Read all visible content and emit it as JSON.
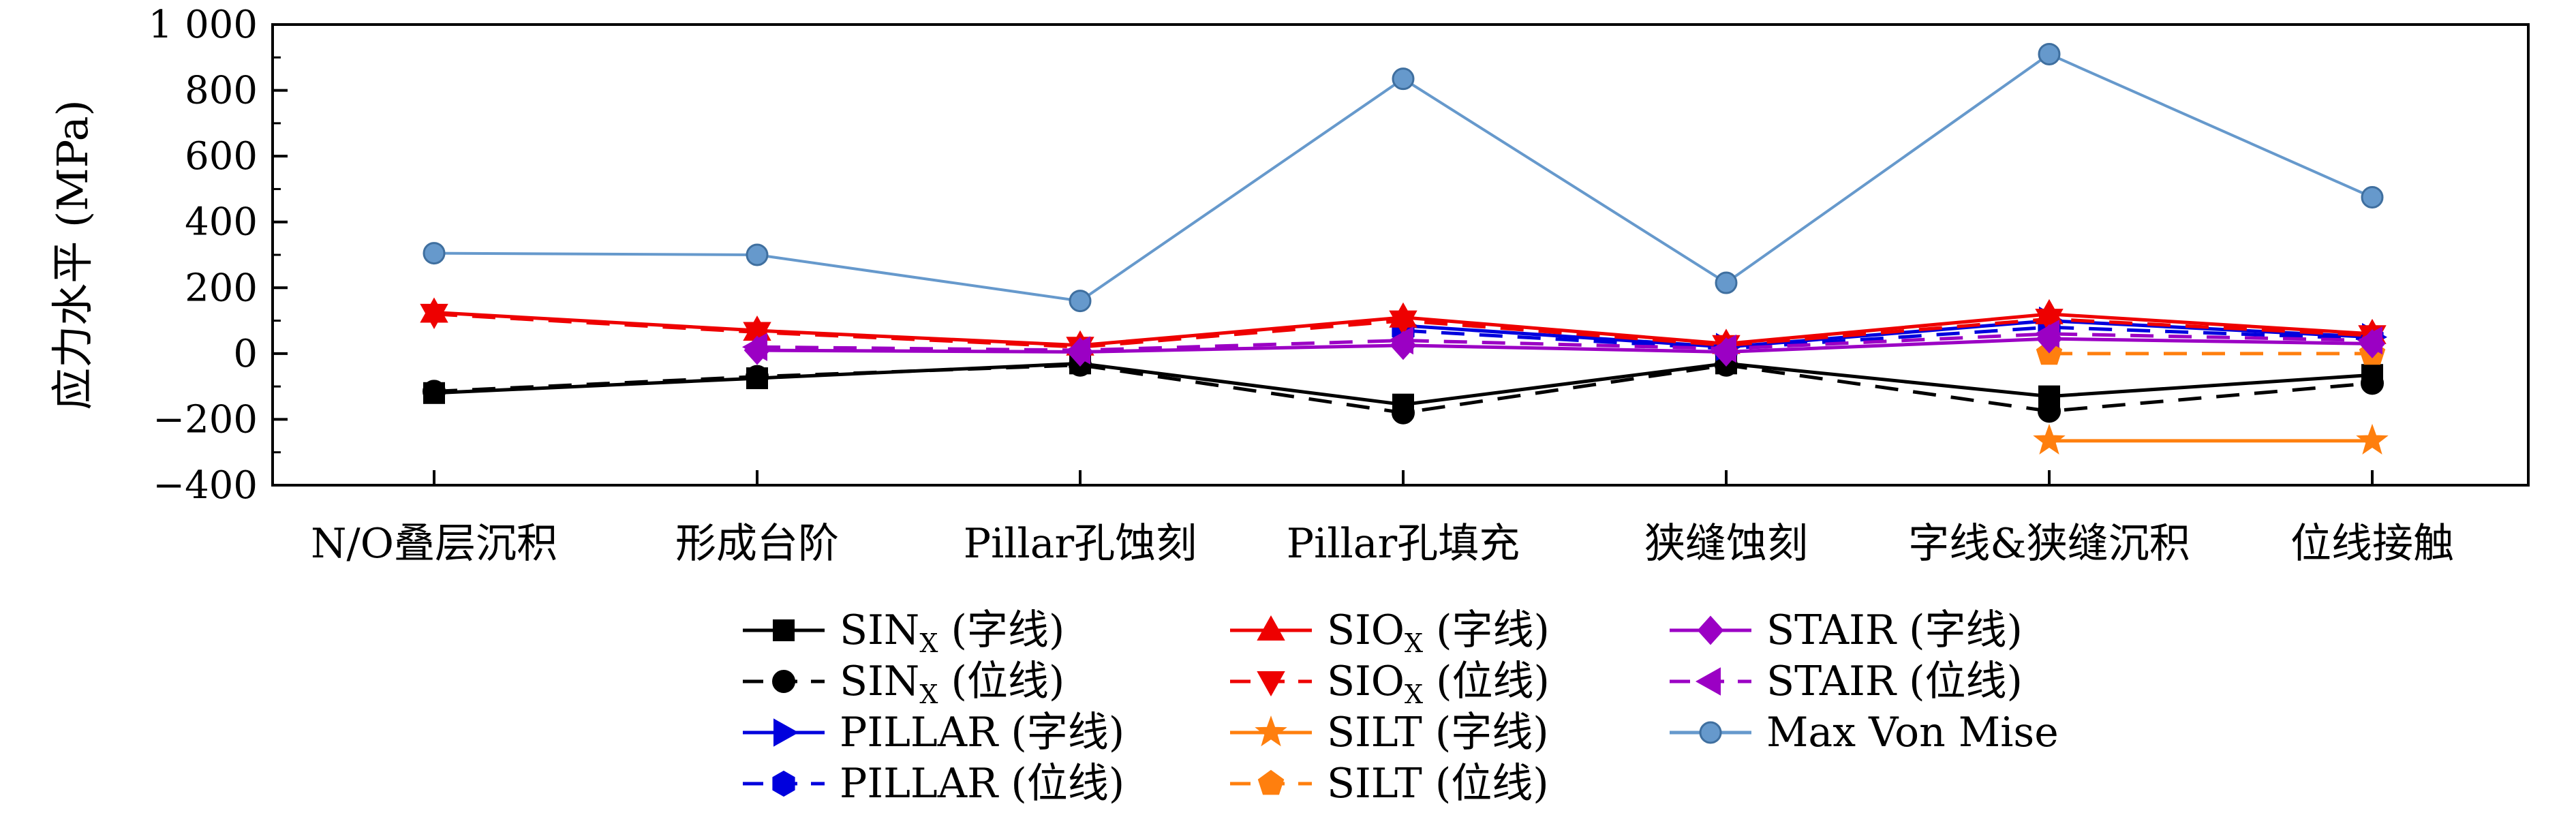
{
  "chart_data": {
    "type": "line",
    "title": "",
    "xlabel": "",
    "ylabel": "应力水平 (MPa)",
    "ylim": [
      -400,
      1000
    ],
    "yticks": [
      -400,
      -200,
      0,
      200,
      400,
      600,
      800,
      1000
    ],
    "ytick_labels": [
      "−400",
      "−200",
      "0",
      "200",
      "400",
      "600",
      "800",
      "1 000"
    ],
    "categories": [
      "N/O叠层沉积",
      "形成台阶",
      "Pillar孔蚀刻",
      "Pillar孔填充",
      "狭缝蚀刻",
      "字线&狭缝沉积",
      "位线接触"
    ],
    "grid": false,
    "legend_position": "bottom",
    "series": [
      {
        "name": "SINX (字线)",
        "name_main": "SIN",
        "name_sub": "X",
        "name_tail": " (字线)",
        "color": "#000000",
        "dash": "solid",
        "marker": "square",
        "values": [
          -120,
          -75,
          -30,
          -155,
          -30,
          -130,
          -65
        ]
      },
      {
        "name": "SINX (位线)",
        "name_main": "SIN",
        "name_sub": "X",
        "name_tail": " (位线)",
        "color": "#000000",
        "dash": "dashed",
        "marker": "circle",
        "values": [
          -115,
          -70,
          -35,
          -180,
          -35,
          -175,
          -90
        ]
      },
      {
        "name": "PILLAR (字线)",
        "name_main": "PILLAR",
        "name_sub": "",
        "name_tail": " (字线)",
        "color": "#0000dd",
        "dash": "solid",
        "marker": "triangle-right",
        "values": [
          null,
          null,
          null,
          85,
          20,
          100,
          50
        ]
      },
      {
        "name": "PILLAR (位线)",
        "name_main": "PILLAR",
        "name_sub": "",
        "name_tail": " (位线)",
        "color": "#0000dd",
        "dash": "dashed",
        "marker": "hexagon",
        "values": [
          null,
          null,
          null,
          70,
          15,
          80,
          45
        ]
      },
      {
        "name": "SIOX (字线)",
        "name_main": "SIO",
        "name_sub": "X",
        "name_tail": " (字线)",
        "color": "#ee0000",
        "dash": "solid",
        "marker": "triangle-up",
        "values": [
          125,
          70,
          25,
          110,
          30,
          120,
          60
        ]
      },
      {
        "name": "SIOX (位线)",
        "name_main": "SIO",
        "name_sub": "X",
        "name_tail": " (位线)",
        "color": "#ee0000",
        "dash": "dashed",
        "marker": "triangle-down",
        "values": [
          120,
          65,
          20,
          100,
          25,
          105,
          55
        ]
      },
      {
        "name": "SILT (字线)",
        "name_main": "SILT",
        "name_sub": "",
        "name_tail": " (字线)",
        "color": "#ff7f0e",
        "dash": "solid",
        "marker": "star",
        "values": [
          null,
          null,
          null,
          null,
          null,
          -265,
          -265
        ]
      },
      {
        "name": "SILT (位线)",
        "name_main": "SILT",
        "name_sub": "",
        "name_tail": " (位线)",
        "color": "#ff7f0e",
        "dash": "dashed",
        "marker": "pentagon",
        "values": [
          null,
          null,
          null,
          null,
          null,
          0,
          0
        ]
      },
      {
        "name": "STAIR (字线)",
        "name_main": "STAIR",
        "name_sub": "",
        "name_tail": " (字线)",
        "color": "#9b00c4",
        "dash": "solid",
        "marker": "diamond",
        "values": [
          null,
          10,
          5,
          25,
          5,
          45,
          30
        ]
      },
      {
        "name": "STAIR (位线)",
        "name_main": "STAIR",
        "name_sub": "",
        "name_tail": " (位线)",
        "color": "#9b00c4",
        "dash": "dashed",
        "marker": "triangle-left",
        "values": [
          null,
          20,
          10,
          40,
          15,
          60,
          40
        ]
      },
      {
        "name": "Max Von Mise",
        "name_main": "Max Von Mise",
        "name_sub": "",
        "name_tail": "",
        "color": "#6699cc",
        "dash": "solid",
        "marker": "ball",
        "values": [
          305,
          300,
          160,
          835,
          215,
          910,
          475
        ]
      }
    ],
    "legend_columns": [
      [
        "SINX (字线)",
        "SINX (位线)",
        "PILLAR (字线)",
        "PILLAR (位线)"
      ],
      [
        "SIOX (字线)",
        "SIOX (位线)",
        "SILT (字线)",
        "SILT (位线)"
      ],
      [
        "STAIR (字线)",
        "STAIR (位线)",
        "Max Von Mise"
      ]
    ]
  }
}
